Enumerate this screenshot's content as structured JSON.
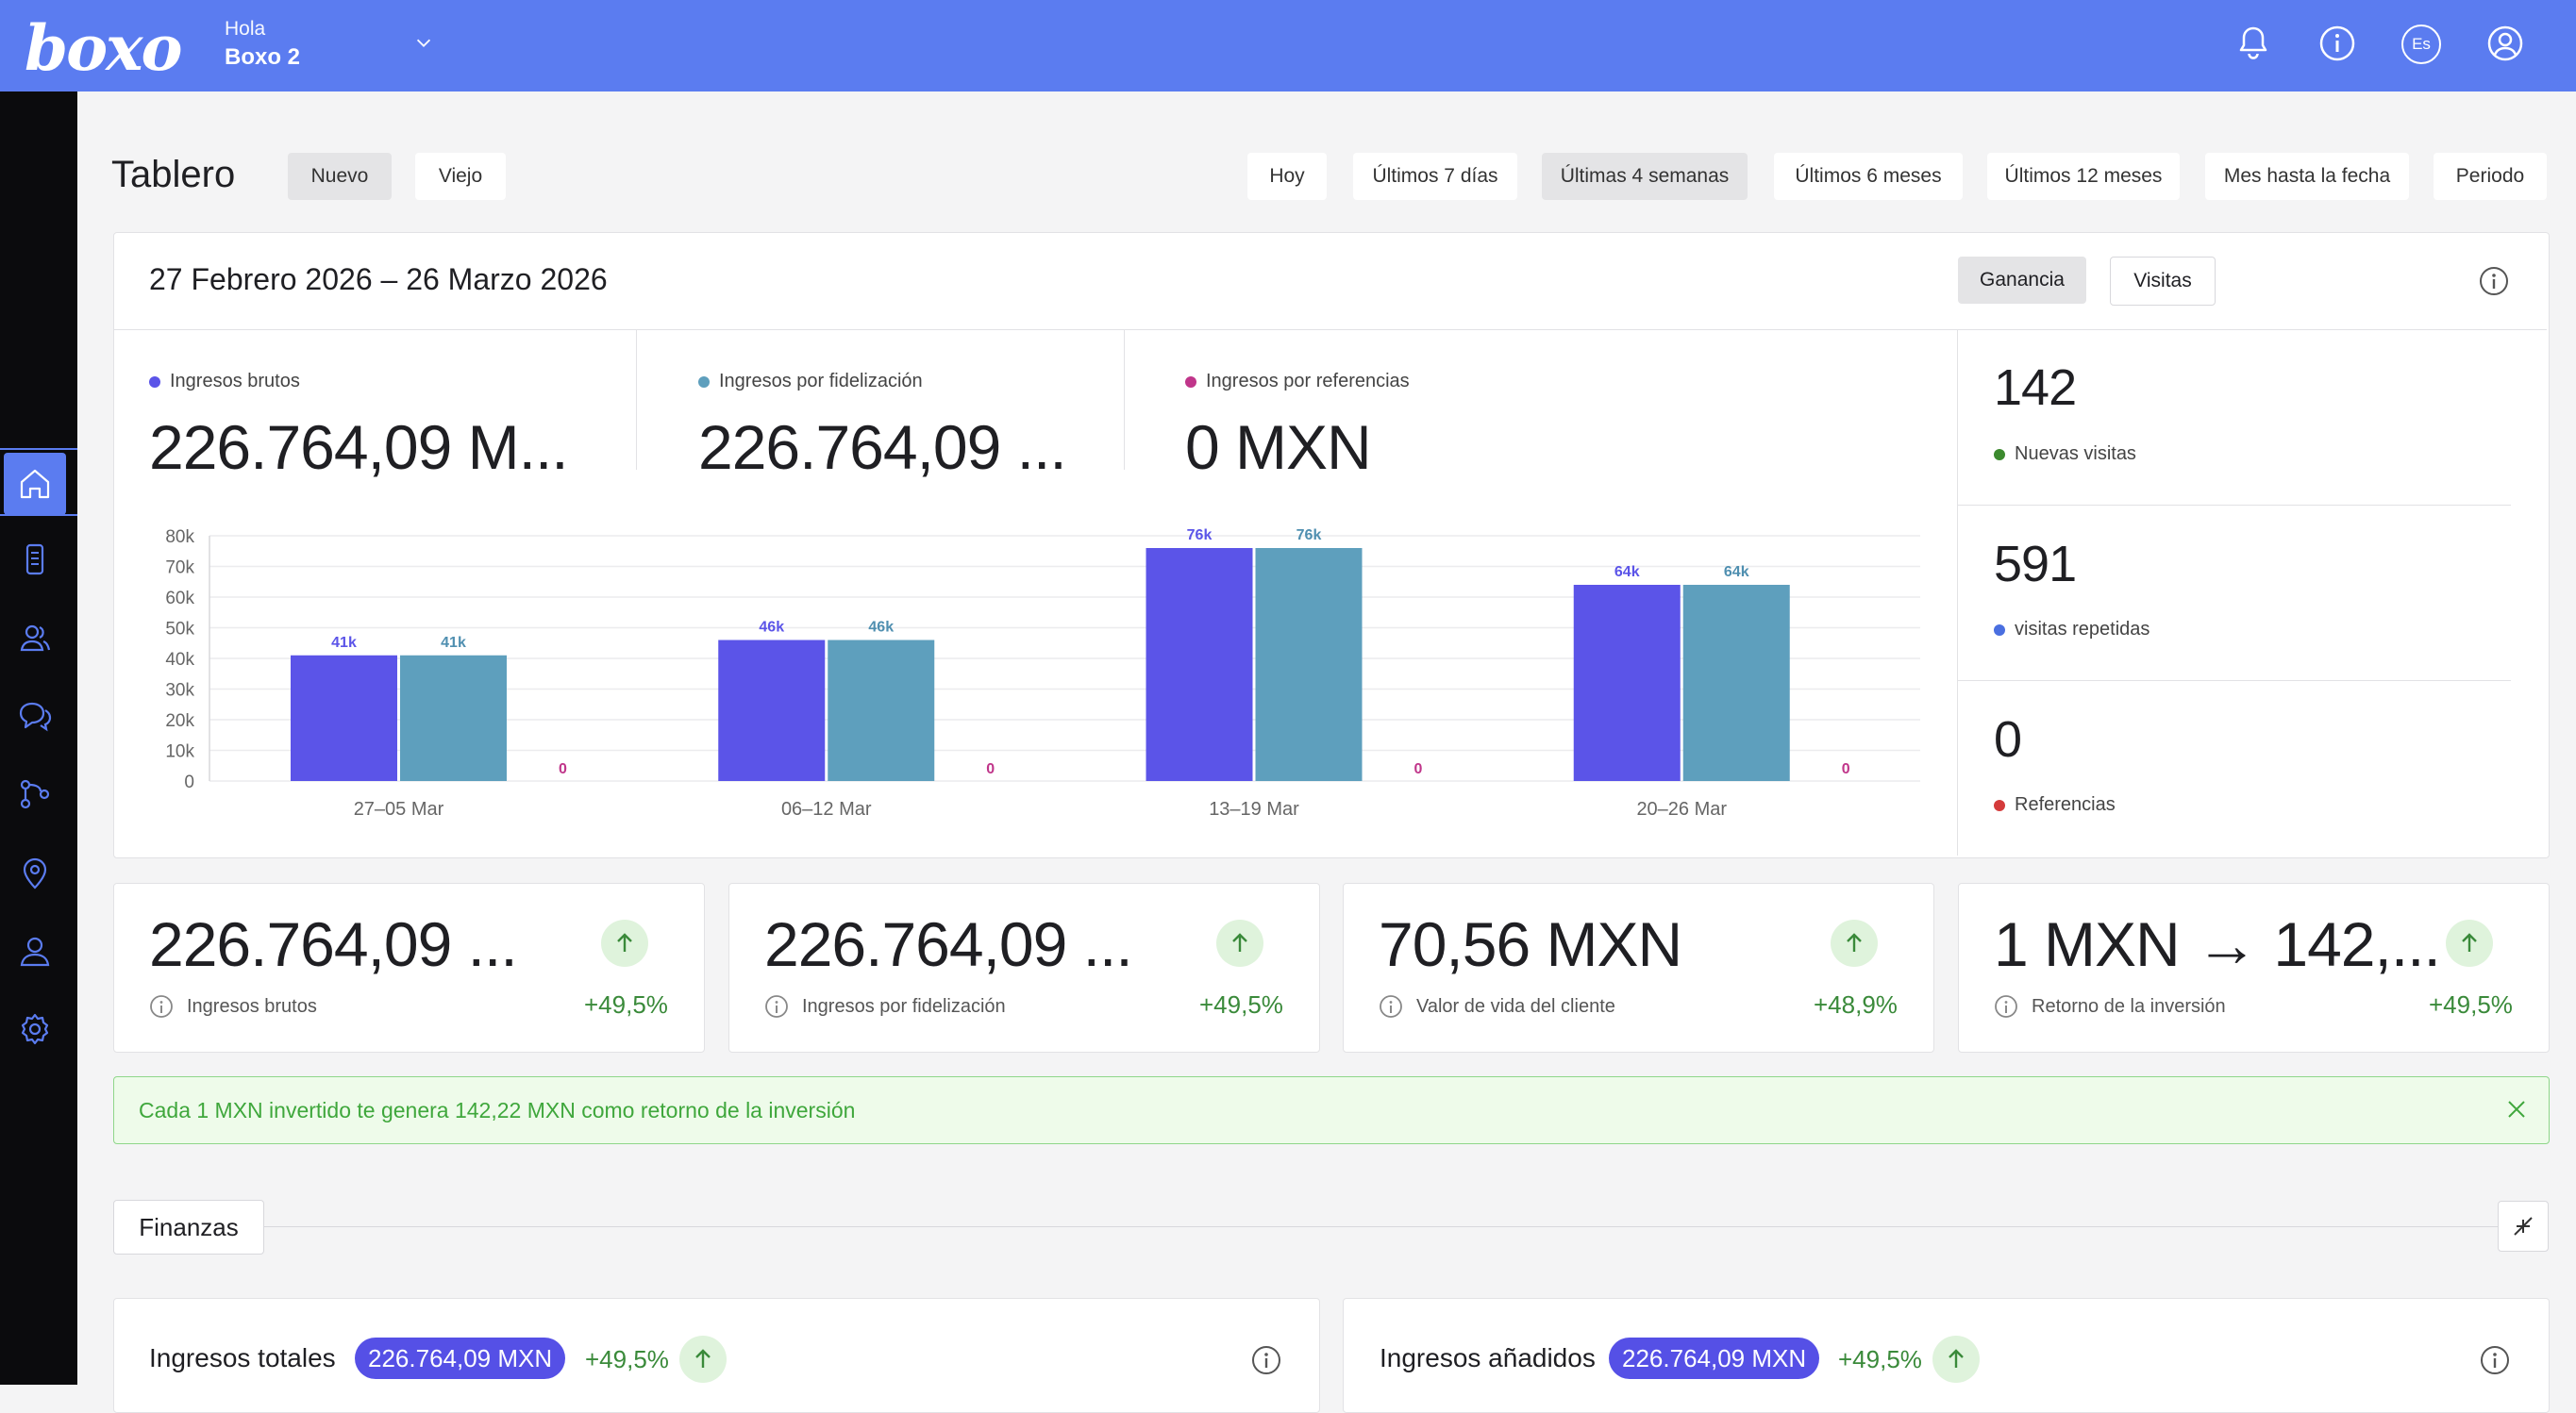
{
  "header": {
    "logo": "boxo",
    "greeting": "Hola",
    "username": "Boxo 2",
    "language": "Es"
  },
  "icons": {
    "notifications": "bell-icon",
    "info": "info-icon",
    "profile": "user-circle-icon"
  },
  "sidebar": {
    "items": [
      "home-icon",
      "devices-icon",
      "users-icon",
      "chat-icon",
      "flow-icon",
      "location-icon",
      "profile-icon",
      "settings-icon"
    ],
    "active": "home-icon"
  },
  "dashboard": {
    "title": "Tablero",
    "version_tabs": [
      "Nuevo",
      "Viejo"
    ],
    "selected_version": "Nuevo",
    "periods": [
      "Hoy",
      "Últimos 7 días",
      "Últimas 4 semanas",
      "Últimos 6 meses",
      "Últimos 12 meses",
      "Mes hasta la fecha",
      "Periodo"
    ],
    "selected_period": "Últimas 4 semanas"
  },
  "overview": {
    "date_range": "27 Febrero 2026 – 26 Marzo 2026",
    "toggle": [
      "Ganancia",
      "Visitas"
    ],
    "selected_toggle": "Ganancia",
    "metrics": [
      {
        "label": "Ingresos brutos",
        "value": "226.764,09 M...",
        "color": "#5b54e8"
      },
      {
        "label": "Ingresos por fidelización",
        "value": "226.764,09 ...",
        "color": "#5e9fbd"
      },
      {
        "label": "Ingresos por referencias",
        "value": "0 MXN",
        "color": "#c0358a"
      }
    ],
    "side_stats": [
      {
        "value": "142",
        "label": "Nuevas visitas",
        "color": "#3c8a2e"
      },
      {
        "value": "591",
        "label": "visitas repetidas",
        "color": "#4a6fe0"
      },
      {
        "value": "0",
        "label": "Referencias",
        "color": "#d43b3b"
      }
    ]
  },
  "chart_data": {
    "type": "bar",
    "categories": [
      "27–05 Mar",
      "06–12 Mar",
      "13–19 Mar",
      "20–26 Mar"
    ],
    "series": [
      {
        "values": [
          41000,
          46000,
          76000,
          64000
        ],
        "labels": [
          "41k",
          "46k",
          "76k",
          "64k"
        ],
        "color": "#5b54e8",
        "label_color": "#5b54e8"
      },
      {
        "values": [
          41000,
          46000,
          76000,
          64000
        ],
        "labels": [
          "41k",
          "46k",
          "76k",
          "64k"
        ],
        "color": "#5e9fbd",
        "label_color": "#4f8fb0"
      },
      {
        "values": [
          0,
          0,
          0,
          0
        ],
        "labels": [
          "0",
          "0",
          "0",
          "0"
        ],
        "color": "#c0358a",
        "label_color": "#c0358a"
      }
    ],
    "yticks": [
      "0",
      "10k",
      "20k",
      "30k",
      "40k",
      "50k",
      "60k",
      "70k",
      "80k"
    ],
    "ylim": [
      0,
      80000
    ],
    "grid": true
  },
  "kpis": [
    {
      "value": "226.764,09 ...",
      "label": "Ingresos brutos",
      "change": "+49,5%"
    },
    {
      "value": "226.764,09 ...",
      "label": "Ingresos por fidelización",
      "change": "+49,5%"
    },
    {
      "value": "70,56 MXN",
      "label": "Valor de vida del cliente",
      "change": "+48,9%"
    },
    {
      "value": "1 MXN → 142,...",
      "label": "Retorno de la inversión",
      "change": "+49,5%"
    }
  ],
  "banner": {
    "text": "Cada 1 MXN invertido te genera 142,22 MXN como retorno de la inversión"
  },
  "finance": {
    "section_title": "Finanzas",
    "cards": [
      {
        "title": "Ingresos totales",
        "value": "226.764,09 MXN",
        "change": "+49,5%"
      },
      {
        "title": "Ingresos añadidos",
        "value": "226.764,09 MXN",
        "change": "+49,5%"
      }
    ]
  }
}
